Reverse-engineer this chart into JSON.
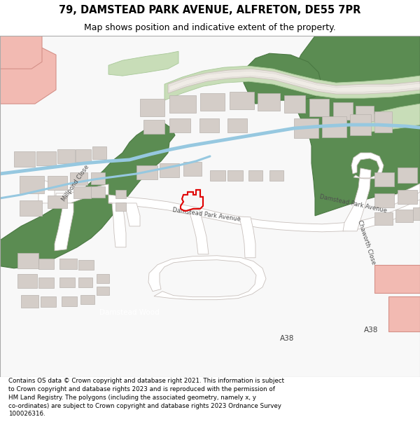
{
  "title_line1": "79, DAMSTEAD PARK AVENUE, ALFRETON, DE55 7PR",
  "title_line2": "Map shows position and indicative extent of the property.",
  "footer_text": "Contains OS data © Crown copyright and database right 2021. This information is subject to Crown copyright and database rights 2023 and is reproduced with the permission of HM Land Registry. The polygons (including the associated geometry, namely x, y co-ordinates) are subject to Crown copyright and database rights 2023 Ordnance Survey 100026316.",
  "bg_color": "#ffffff",
  "building_color": "#d4cdc8",
  "building_outline": "#b8b2ae",
  "special_building_color": "#f2bab2",
  "special_building_outline": "#d49088",
  "green_dark": "#5b8c52",
  "green_dark_outline": "#4a7842",
  "green_light": "#c8ddb8",
  "green_light_outline": "#a8c898",
  "water_color": "#96c8e0",
  "road_outline": "#c8c0bc",
  "property_color": "#e00000",
  "property_linewidth": 1.5,
  "road_label_color": "#505050",
  "label_fontsize": 6.0,
  "title_fontsize": 10.5,
  "subtitle_fontsize": 9.0,
  "footer_fontsize": 6.3
}
